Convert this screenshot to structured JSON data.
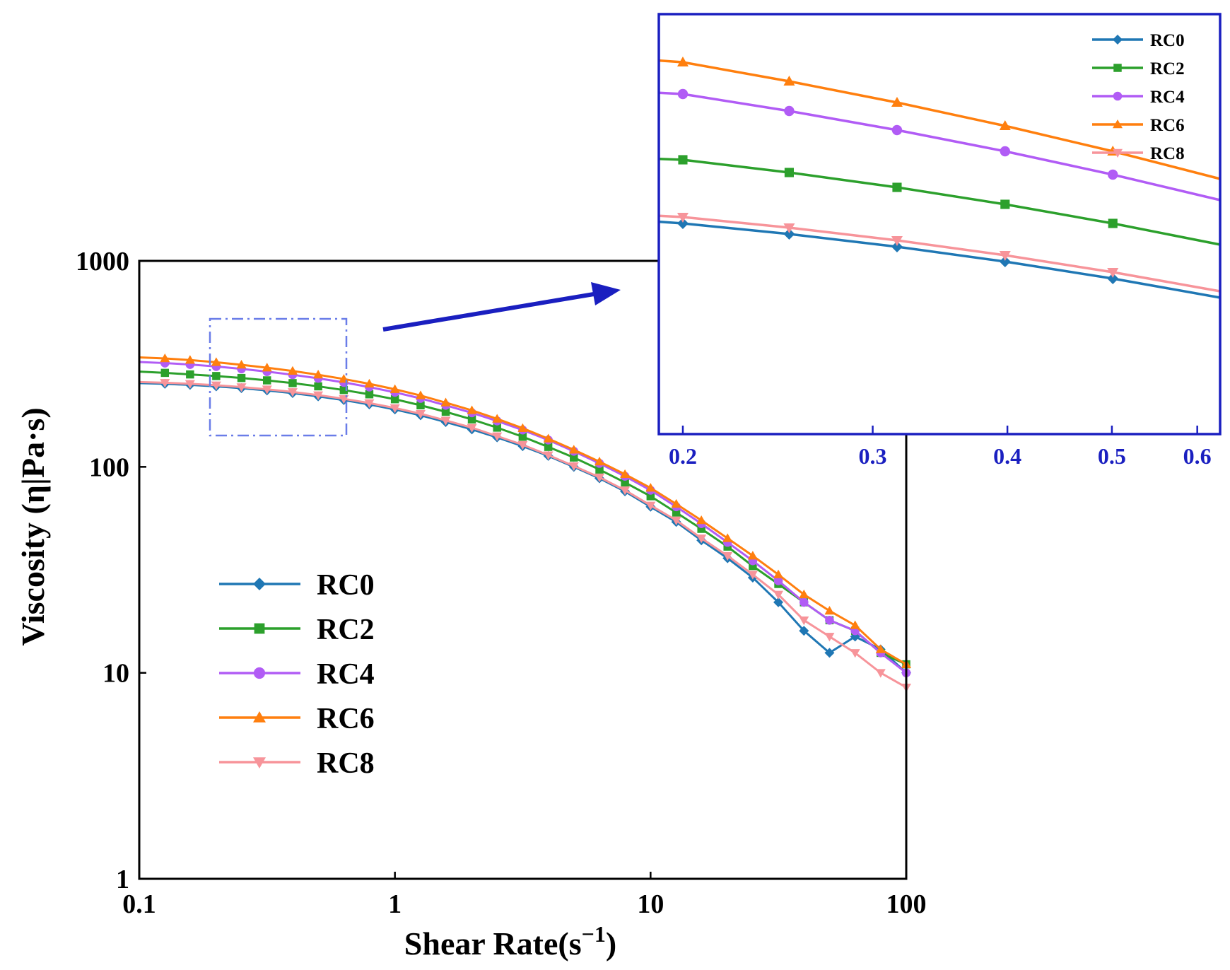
{
  "chart_data": [
    {
      "type": "line",
      "id": "main",
      "xscale": "log",
      "yscale": "log",
      "xlim": [
        0.1,
        100
      ],
      "ylim": [
        1,
        1000
      ],
      "xlabel": "Shear Rate(s",
      "xlabel_sup": "−1",
      "xlabel_end": ")",
      "ylabel": "Viscosity (η|Pa·s)",
      "xticks": [
        {
          "v": 0.1,
          "label": "0.1"
        },
        {
          "v": 1,
          "label": "1"
        },
        {
          "v": 10,
          "label": "10"
        },
        {
          "v": 100,
          "label": "100"
        }
      ],
      "yticks": [
        {
          "v": 1,
          "label": "1"
        },
        {
          "v": 10,
          "label": "10"
        },
        {
          "v": 100,
          "label": "100"
        },
        {
          "v": 1000,
          "label": "1000"
        }
      ],
      "legend_position": "lower-left",
      "x": [
        0.1,
        0.126,
        0.158,
        0.2,
        0.251,
        0.316,
        0.398,
        0.501,
        0.631,
        0.794,
        1.0,
        1.26,
        1.58,
        2.0,
        2.51,
        3.16,
        3.98,
        5.01,
        6.31,
        7.94,
        10.0,
        12.6,
        15.8,
        20.0,
        25.1,
        31.6,
        39.8,
        50.1,
        63.1,
        79.4,
        100
      ],
      "series": [
        {
          "name": "RC0",
          "color": "#1f77b4",
          "marker": "diamond",
          "values": [
            255,
            253,
            250,
            246,
            241,
            235,
            228,
            220,
            211,
            201,
            190,
            178,
            165,
            152,
            139,
            126,
            113,
            100,
            88,
            76,
            64,
            54,
            44,
            36,
            29,
            22,
            16,
            12.5,
            15,
            13,
            10
          ]
        },
        {
          "name": "RC2",
          "color": "#2ca02c",
          "marker": "square",
          "values": [
            290,
            286,
            281,
            276,
            270,
            263,
            255,
            246,
            236,
            225,
            213,
            199,
            185,
            170,
            155,
            140,
            125,
            111,
            97,
            84,
            72,
            60,
            50,
            41,
            33,
            27,
            22,
            18,
            16,
            12.5,
            11
          ]
        },
        {
          "name": "RC4",
          "color": "#b15cf5",
          "marker": "circle",
          "values": [
            323,
            319,
            314,
            307,
            299,
            290,
            280,
            269,
            257,
            244,
            230,
            215,
            199,
            183,
            167,
            151,
            135,
            119,
            104,
            90,
            77,
            64,
            53,
            43,
            35,
            28,
            22,
            18,
            16,
            12.5,
            10
          ]
        },
        {
          "name": "RC6",
          "color": "#ff7f0e",
          "marker": "triangle-up",
          "values": [
            340,
            336,
            330,
            322,
            313,
            303,
            292,
            280,
            267,
            253,
            238,
            222,
            205,
            188,
            171,
            154,
            137,
            121,
            106,
            92,
            79,
            66,
            55,
            45,
            37,
            30,
            24,
            20,
            17,
            13,
            11
          ]
        },
        {
          "name": "RC8",
          "color": "#f7949a",
          "marker": "triangle-down",
          "values": [
            258,
            256,
            253,
            249,
            244,
            238,
            231,
            223,
            214,
            204,
            193,
            181,
            168,
            155,
            141,
            128,
            114,
            101,
            89,
            77,
            65,
            55,
            45,
            37,
            30,
            24,
            18,
            15,
            12.5,
            10,
            8.5
          ]
        }
      ]
    },
    {
      "type": "line",
      "id": "inset",
      "xscale": "log",
      "xlim": [
        0.19,
        0.63
      ],
      "xticks": [
        {
          "v": 0.2,
          "label": "0.2"
        },
        {
          "v": 0.3,
          "label": "0.3"
        },
        {
          "v": 0.4,
          "label": "0.4"
        },
        {
          "v": 0.5,
          "label": "0.5"
        },
        {
          "v": 0.6,
          "label": "0.6"
        }
      ],
      "legend_position": "top-right",
      "x": [
        0.19,
        0.2,
        0.251,
        0.316,
        0.398,
        0.501,
        0.63
      ],
      "series": [
        {
          "name": "RC0",
          "color": "#1f77b4",
          "marker": "diamond",
          "values": [
            246.8,
            246,
            241,
            235,
            228,
            220,
            211
          ]
        },
        {
          "name": "RC2",
          "color": "#2ca02c",
          "marker": "square",
          "values": [
            276.4,
            276,
            270,
            263,
            255,
            246,
            236
          ]
        },
        {
          "name": "RC4",
          "color": "#b15cf5",
          "marker": "circle",
          "values": [
            307.6,
            307,
            299,
            290,
            280,
            269,
            257
          ]
        },
        {
          "name": "RC6",
          "color": "#ff7f0e",
          "marker": "triangle-up",
          "values": [
            322.8,
            322,
            313,
            303,
            292,
            280,
            267
          ]
        },
        {
          "name": "RC8",
          "color": "#f7949a",
          "marker": "triangle-down",
          "values": [
            249.6,
            249,
            244,
            238,
            231,
            223,
            214
          ]
        }
      ]
    }
  ]
}
